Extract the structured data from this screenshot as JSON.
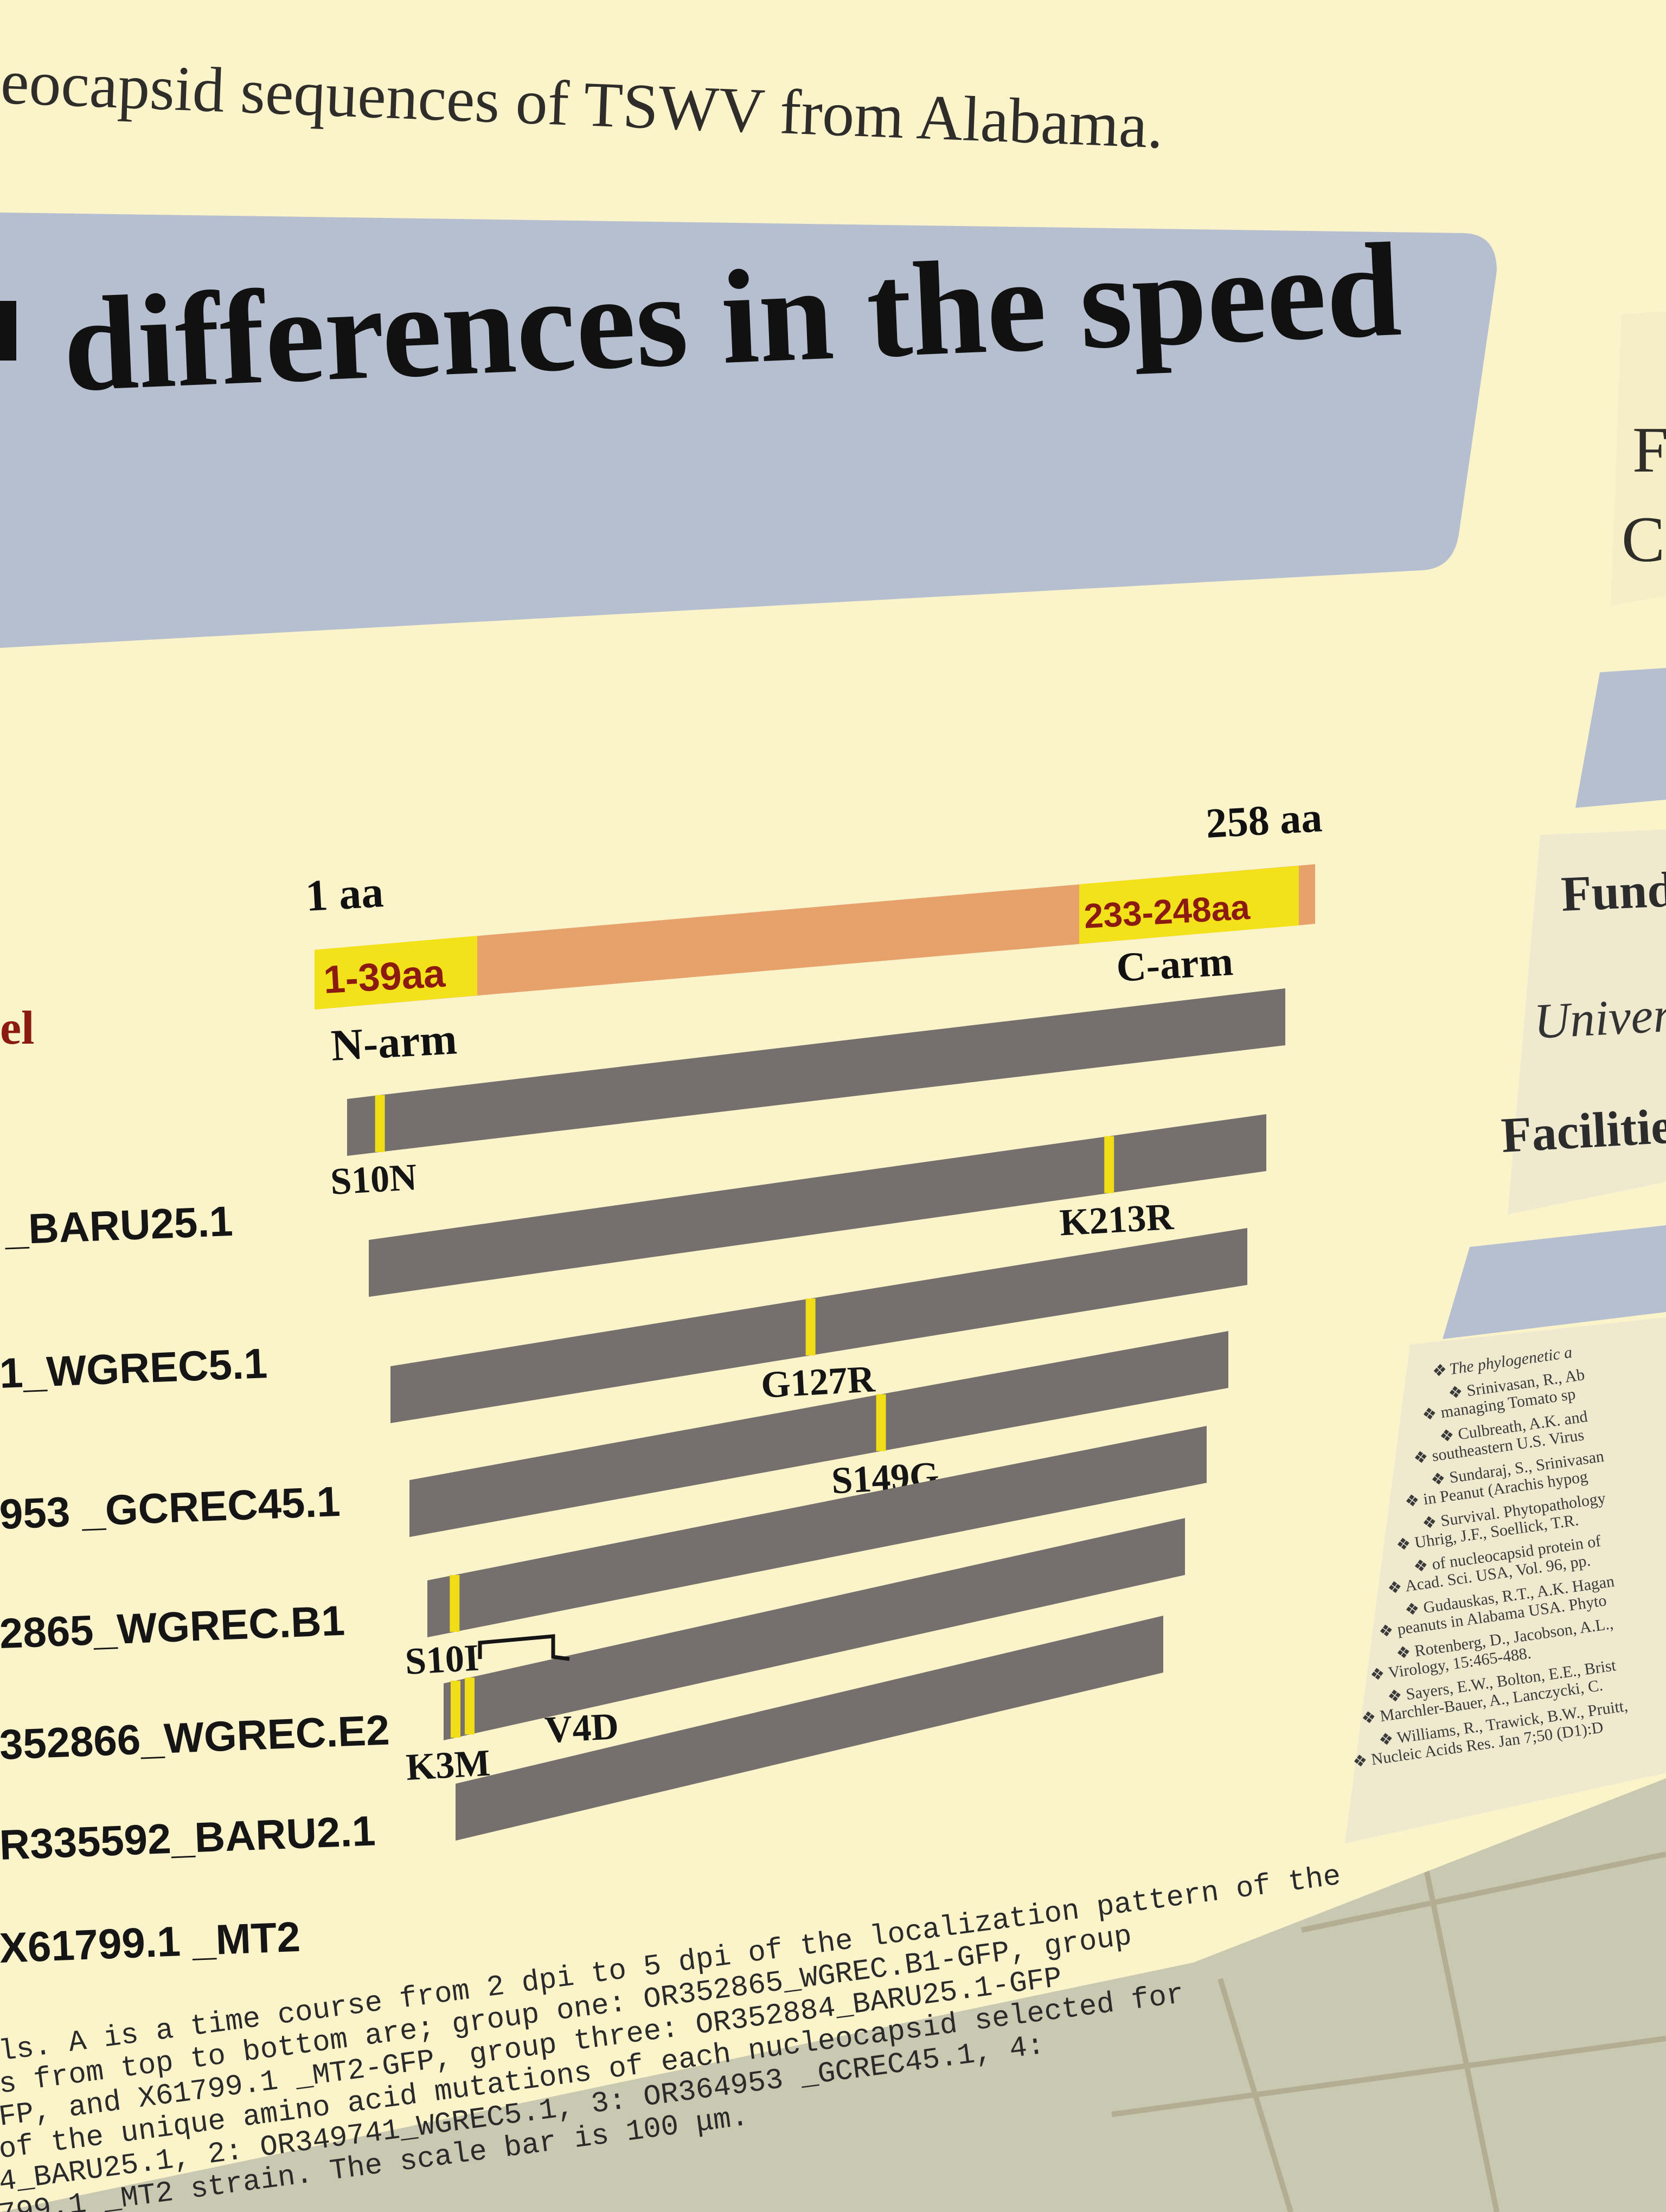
{
  "poster": {
    "title_fragment": "eocapsid sequences of TSWV from Alabama.",
    "banner_heading": "differences in the speed",
    "left_edge_label": "el",
    "right_column": {
      "top_letters": [
        "F",
        "Ca"
      ],
      "labels": [
        "Fund",
        "Univer",
        "Facilitie"
      ],
      "references": [
        "The phylogenetic a",
        "Srinivasan, R., Ab",
        "managing Tomato sp",
        "Culbreath, A.K. and",
        "southeastern U.S. Virus",
        "Sundaraj, S., Srinivasan",
        "in Peanut (Arachis hypog",
        "Survival. Phytopathology",
        "Uhrig, J.F., Soellick, T.R.",
        "of nucleocapsid protein of",
        "Acad. Sci. USA, Vol. 96, pp.",
        "Gudauskas, R.T., A.K. Hagan",
        "peanuts in Alabama USA. Phyto",
        "Rotenberg, D., Jacobson, A.L.,",
        "Virology, 15:465-488.",
        "Sayers, E.W., Bolton, E.E., Brist",
        "Marchler-Bauer, A., Lanczycki, C.",
        "Williams, R., Trawick, B.W., Pruitt,",
        "Nucleic Acids Res. Jan 7;50 (D1):D"
      ]
    }
  },
  "diagram": {
    "start_label": "1 aa",
    "end_label": "258 aa",
    "n_region": "1-39aa",
    "n_arm": "N-arm",
    "c_region": "233-248aa",
    "c_arm": "C-arm",
    "total_length": 258,
    "strains": [
      {
        "name": "_BARU25.1",
        "mutations": [
          {
            "label": "S10N",
            "position": 10
          }
        ]
      },
      {
        "name": "1_WGREC5.1",
        "mutations": [
          {
            "label": "K213R",
            "position": 213
          }
        ]
      },
      {
        "name": "953 _GCREC45.1",
        "mutations": [
          {
            "label": "G127R",
            "position": 127
          }
        ]
      },
      {
        "name": "2865_WGREC.B1",
        "mutations": [
          {
            "label": "S149G",
            "position": 149
          }
        ]
      },
      {
        "name": "352866_WGREC.E2",
        "mutations": [
          {
            "label": "S10I",
            "position": 10
          }
        ]
      },
      {
        "name": "R335592_BARU2.1",
        "mutations": [
          {
            "label": "K3M",
            "position": 3
          },
          {
            "label": "V4D",
            "position": 4
          }
        ]
      },
      {
        "name": "X61799.1 _MT2",
        "mutations": []
      }
    ]
  },
  "caption_lines": [
    "ls. A is a time course from 2 dpi to 5 dpi of the localization pattern of the",
    "s from top to bottom are; group one: OR352865_WGREC.B1-GFP, group",
    "FP, and X61799.1 _MT2-GFP, group three: OR352884_BARU25.1-GFP",
    " of the unique amino acid mutations of each nucleocapsid selected for",
    "4_BARU25.1, 2: OR349741_WGREC5.1, 3: OR364953 _GCREC45.1, 4:",
    "799.1 _MT2 strain. The scale bar is 100 μm."
  ],
  "colors": {
    "poster_bg": "#fbf4cb",
    "banner": "#b5bfcf",
    "protein_bar": "#e7a16b",
    "region_highlight": "#f3e21a",
    "strain_bar": "#75706d",
    "mutation_mark": "#f0dd18",
    "tile_wall": "#c6c5ae"
  }
}
